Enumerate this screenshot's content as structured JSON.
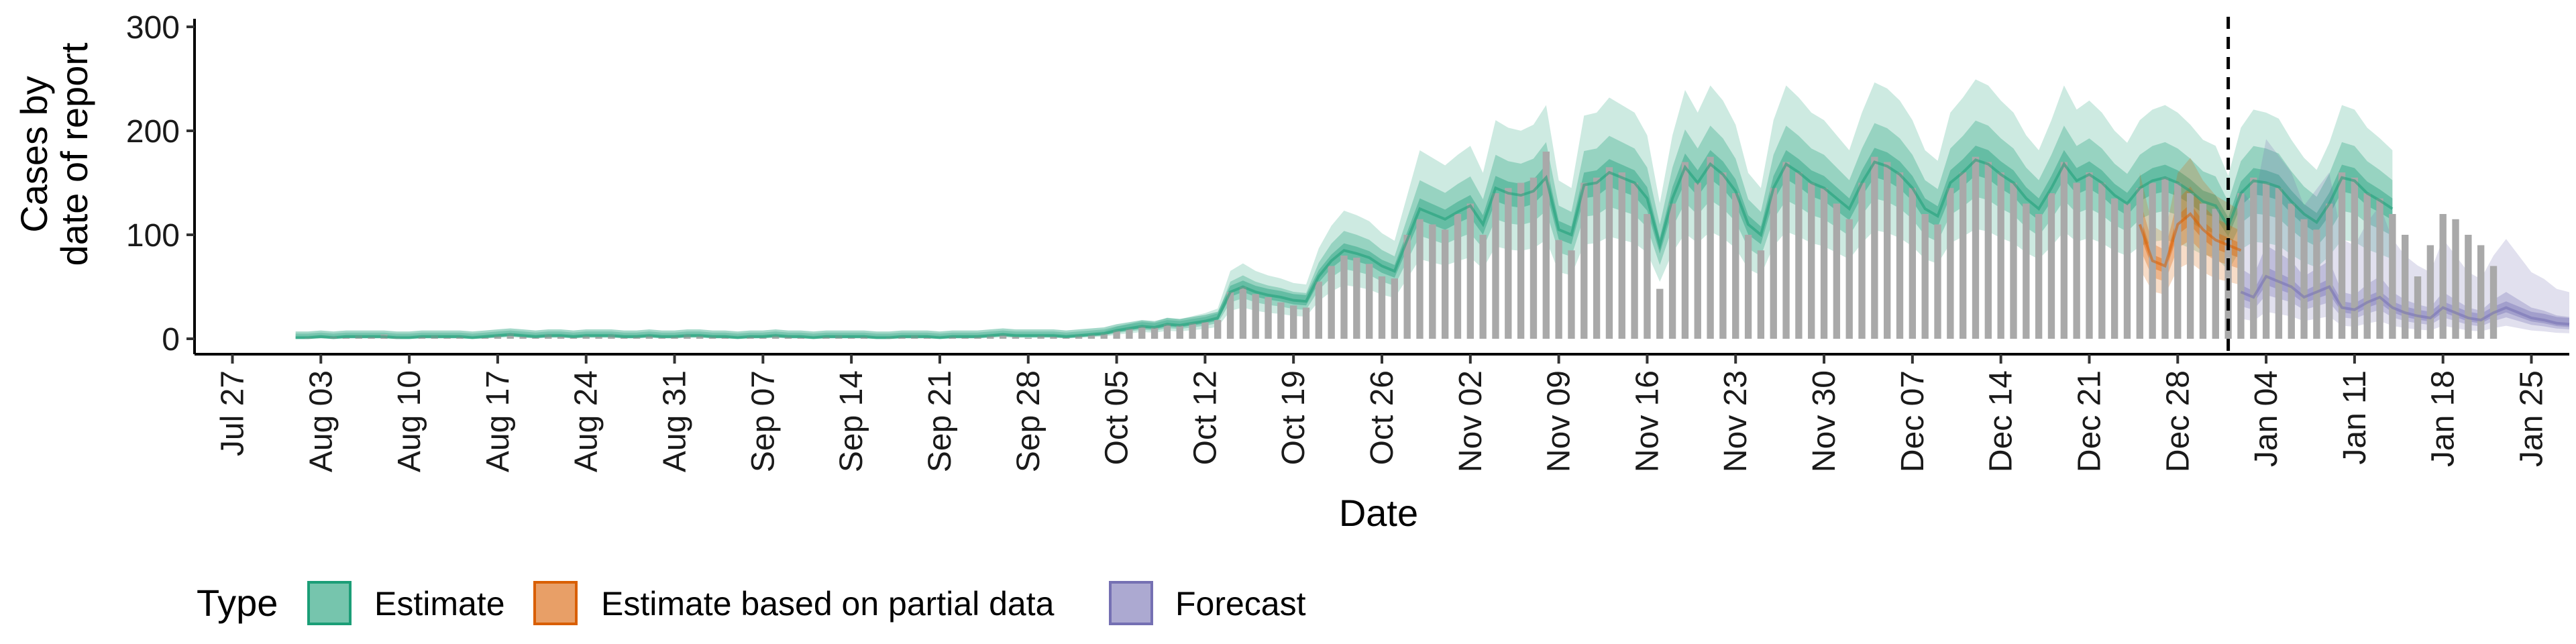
{
  "chart_data": {
    "type": "bar",
    "xlabel": "Date",
    "ylabel_lines": [
      "Cases by",
      "date of report"
    ],
    "ylim": [
      0,
      300
    ],
    "y_ticks": [
      0,
      100,
      200,
      300
    ],
    "x_range": [
      "2020-07-24",
      "2021-01-28"
    ],
    "x_tick_dates": [
      "2020-07-27",
      "2020-08-03",
      "2020-08-10",
      "2020-08-17",
      "2020-08-24",
      "2020-08-31",
      "2020-09-07",
      "2020-09-14",
      "2020-09-21",
      "2020-09-28",
      "2020-10-05",
      "2020-10-12",
      "2020-10-19",
      "2020-10-26",
      "2020-11-02",
      "2020-11-09",
      "2020-11-16",
      "2020-11-23",
      "2020-11-30",
      "2020-12-07",
      "2020-12-14",
      "2020-12-21",
      "2020-12-28",
      "2021-01-04",
      "2021-01-11",
      "2021-01-18",
      "2021-01-25"
    ],
    "x_tick_labels": [
      "Jul 27",
      "Aug 03",
      "Aug 10",
      "Aug 17",
      "Aug 24",
      "Aug 31",
      "Sep 07",
      "Sep 14",
      "Sep 21",
      "Sep 28",
      "Oct 05",
      "Oct 12",
      "Oct 19",
      "Oct 26",
      "Nov 02",
      "Nov 09",
      "Nov 16",
      "Nov 23",
      "Nov 30",
      "Dec 07",
      "Dec 14",
      "Dec 21",
      "Dec 28",
      "Jan 04",
      "Jan 11",
      "Jan 18",
      "Jan 25"
    ],
    "vline_date": "2021-01-01",
    "observed_start": "2020-08-01",
    "observed_cases": [
      0,
      1,
      0,
      2,
      1,
      3,
      2,
      4,
      1,
      0,
      2,
      3,
      1,
      2,
      0,
      1,
      3,
      5,
      2,
      1,
      4,
      2,
      1,
      3,
      2,
      4,
      1,
      2,
      3,
      1,
      2,
      4,
      3,
      2,
      1,
      0,
      2,
      1,
      3,
      2,
      1,
      0,
      2,
      3,
      1,
      2,
      0,
      1,
      2,
      3,
      1,
      0,
      2,
      1,
      2,
      3,
      4,
      2,
      1,
      3,
      2,
      1,
      3,
      4,
      5,
      8,
      10,
      12,
      11,
      14,
      13,
      15,
      16,
      18,
      45,
      50,
      43,
      40,
      35,
      32,
      30,
      55,
      70,
      80,
      78,
      72,
      60,
      58,
      100,
      115,
      110,
      105,
      120,
      130,
      100,
      140,
      145,
      150,
      155,
      180,
      95,
      85,
      150,
      155,
      165,
      160,
      150,
      120,
      48,
      130,
      170,
      150,
      175,
      160,
      140,
      100,
      85,
      145,
      170,
      160,
      150,
      145,
      130,
      115,
      150,
      175,
      170,
      160,
      145,
      120,
      110,
      145,
      160,
      175,
      170,
      160,
      150,
      130,
      120,
      140,
      170,
      150,
      160,
      150,
      135,
      130,
      145,
      150,
      155,
      150,
      140,
      130,
      125,
      95,
      140,
      155,
      150,
      145,
      130,
      115,
      105,
      130,
      160,
      155,
      140,
      135,
      120,
      100,
      60,
      90,
      120,
      115,
      100,
      90,
      70
    ],
    "series": [
      {
        "name": "Estimate",
        "color": "#1b9e77",
        "start": "2020-08-01",
        "median": [
          1,
          1,
          2,
          1,
          2,
          2,
          2,
          2,
          1,
          1,
          2,
          2,
          2,
          2,
          1,
          2,
          3,
          4,
          3,
          2,
          3,
          3,
          2,
          3,
          3,
          3,
          2,
          2,
          3,
          2,
          2,
          3,
          3,
          2,
          2,
          1,
          2,
          2,
          3,
          2,
          2,
          1,
          2,
          2,
          2,
          2,
          1,
          1,
          2,
          2,
          2,
          1,
          2,
          2,
          2,
          3,
          4,
          3,
          3,
          3,
          3,
          2,
          3,
          4,
          5,
          8,
          10,
          12,
          11,
          14,
          13,
          15,
          17,
          20,
          45,
          50,
          45,
          42,
          40,
          37,
          36,
          60,
          75,
          85,
          82,
          78,
          70,
          65,
          95,
          125,
          120,
          115,
          122,
          128,
          110,
          145,
          140,
          138,
          142,
          155,
          105,
          100,
          148,
          150,
          160,
          155,
          150,
          135,
          90,
          135,
          165,
          150,
          168,
          158,
          142,
          110,
          100,
          145,
          168,
          160,
          150,
          145,
          135,
          125,
          150,
          170,
          166,
          158,
          145,
          125,
          118,
          150,
          160,
          172,
          168,
          158,
          150,
          135,
          125,
          145,
          168,
          152,
          158,
          150,
          138,
          130,
          145,
          152,
          155,
          150,
          142,
          132,
          128,
          108,
          140,
          152,
          150,
          146,
          132,
          120,
          112,
          130,
          155,
          152,
          140,
          133,
          125
        ]
      },
      {
        "name": "Estimate based on partial data",
        "color": "#d95f02",
        "start": "2020-12-25",
        "median": [
          110,
          75,
          70,
          110,
          120,
          105,
          95,
          90,
          85
        ]
      },
      {
        "name": "Forecast",
        "color": "#7570b3",
        "start": "2021-01-02",
        "median": [
          45,
          40,
          60,
          55,
          50,
          40,
          45,
          50,
          30,
          28,
          35,
          40,
          30,
          25,
          22,
          20,
          30,
          25,
          20,
          18,
          25,
          30,
          25,
          20,
          18,
          15,
          14
        ]
      }
    ],
    "legend": {
      "title": "Type",
      "position": "bottom-left",
      "items": [
        {
          "label": "Estimate",
          "color": "#1b9e77"
        },
        {
          "label": "Estimate based on partial data",
          "color": "#d95f02"
        },
        {
          "label": "Forecast",
          "color": "#7570b3"
        }
      ]
    }
  }
}
